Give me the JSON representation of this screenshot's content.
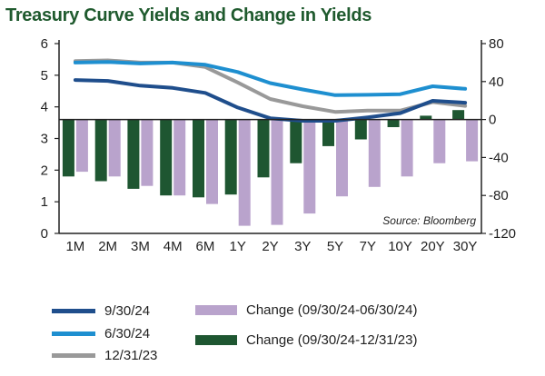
{
  "chart_data": {
    "type": "bar+line",
    "title": "Treasury Curve Yields and Change in Yields",
    "source": "Source: Bloomberg",
    "categories": [
      "1M",
      "2M",
      "3M",
      "4M",
      "6M",
      "1Y",
      "2Y",
      "3Y",
      "5Y",
      "7Y",
      "10Y",
      "20Y",
      "30Y"
    ],
    "y_left": {
      "range": [
        0,
        6
      ],
      "ticks": [
        "0",
        "1",
        "2",
        "3",
        "4",
        "5",
        "6"
      ]
    },
    "y_right": {
      "range": [
        -120,
        80
      ],
      "ticks": [
        "80",
        "40",
        "0",
        "-40",
        "-80",
        "-120"
      ]
    },
    "series": [
      {
        "name": "9/30/24",
        "type": "line",
        "axis": "left",
        "color": "#1f4e8c",
        "values": [
          4.85,
          4.82,
          4.67,
          4.6,
          4.44,
          3.98,
          3.64,
          3.56,
          3.56,
          3.67,
          3.8,
          4.19,
          4.13
        ]
      },
      {
        "name": "6/30/24",
        "type": "line",
        "axis": "left",
        "color": "#1e8fd0",
        "values": [
          5.4,
          5.42,
          5.37,
          5.4,
          5.33,
          5.1,
          4.75,
          4.55,
          4.37,
          4.38,
          4.4,
          4.65,
          4.57
        ]
      },
      {
        "name": "12/31/23",
        "type": "line",
        "axis": "left",
        "color": "#999999",
        "values": [
          5.45,
          5.47,
          5.4,
          5.4,
          5.26,
          4.77,
          4.25,
          4.02,
          3.84,
          3.88,
          3.88,
          4.15,
          4.03
        ]
      },
      {
        "name": "Change (09/30/24-06/30/24)",
        "type": "bar",
        "axis": "right",
        "color": "#b9a3cc",
        "values": [
          -55,
          -60,
          -70,
          -80,
          -89,
          -112,
          -111,
          -99,
          -81,
          -71,
          -60,
          -46,
          -44
        ]
      },
      {
        "name": "Change (09/30/24-12/31/23)",
        "type": "bar",
        "axis": "right",
        "color": "#1e5631",
        "values": [
          -60,
          -65,
          -73,
          -80,
          -82,
          -79,
          -61,
          -46,
          -28,
          -21,
          -8,
          4,
          10
        ]
      }
    ],
    "legend_placement": "bottom"
  }
}
